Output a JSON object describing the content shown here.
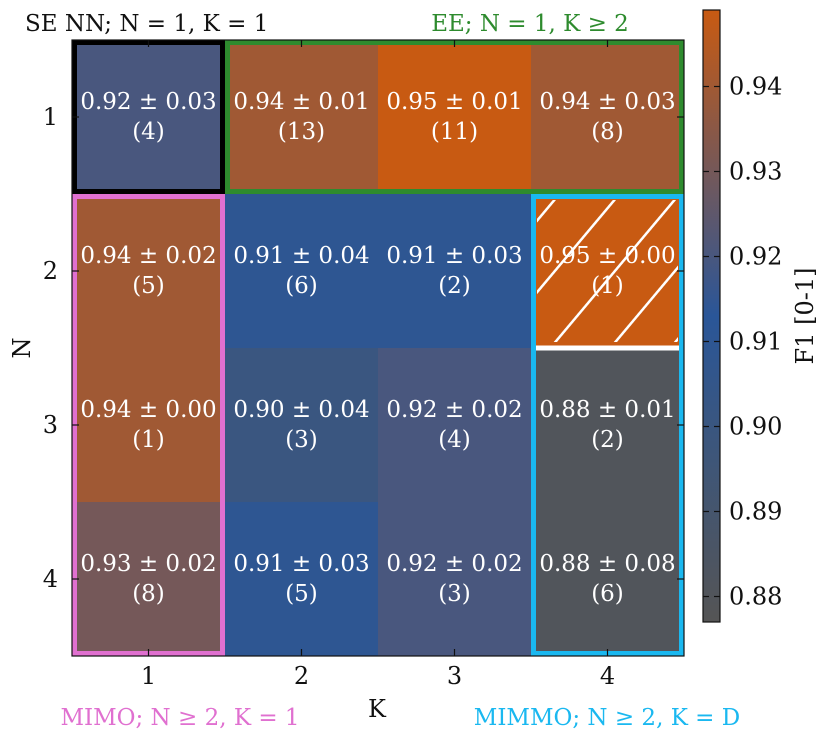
{
  "chart_data": {
    "type": "heatmap",
    "xlabel": "K",
    "ylabel": "N",
    "x_categories": [
      "1",
      "2",
      "3",
      "4"
    ],
    "y_categories": [
      "1",
      "2",
      "3",
      "4"
    ],
    "colorbar": {
      "label": "F1 [0-1]",
      "ticks": [
        "0.94",
        "0.93",
        "0.92",
        "0.91",
        "0.90",
        "0.89",
        "0.88"
      ],
      "tick_values": [
        0.94,
        0.93,
        0.92,
        0.91,
        0.9,
        0.89,
        0.88
      ],
      "range": [
        0.877,
        0.949
      ],
      "colors": [
        "#555555",
        "#2a5698",
        "#c85a12"
      ]
    },
    "cells": [
      {
        "N": 1,
        "K": 1,
        "value": 0.92,
        "text": "0.92 ± 0.03",
        "count": "(4)"
      },
      {
        "N": 1,
        "K": 2,
        "value": 0.94,
        "text": "0.94 ± 0.01",
        "count": "(13)"
      },
      {
        "N": 1,
        "K": 3,
        "value": 0.95,
        "text": "0.95 ± 0.01",
        "count": "(11)"
      },
      {
        "N": 1,
        "K": 4,
        "value": 0.94,
        "text": "0.94 ± 0.03",
        "count": "(8)"
      },
      {
        "N": 2,
        "K": 1,
        "value": 0.94,
        "text": "0.94 ± 0.02",
        "count": "(5)"
      },
      {
        "N": 2,
        "K": 2,
        "value": 0.91,
        "text": "0.91 ± 0.04",
        "count": "(6)"
      },
      {
        "N": 2,
        "K": 3,
        "value": 0.91,
        "text": "0.91 ± 0.03",
        "count": "(2)"
      },
      {
        "N": 2,
        "K": 4,
        "value": 0.95,
        "text": "0.95 ± 0.00",
        "count": "(1)",
        "hatched": true
      },
      {
        "N": 3,
        "K": 1,
        "value": 0.94,
        "text": "0.94 ± 0.00",
        "count": "(1)"
      },
      {
        "N": 3,
        "K": 2,
        "value": 0.9,
        "text": "0.90 ± 0.04",
        "count": "(3)"
      },
      {
        "N": 3,
        "K": 3,
        "value": 0.92,
        "text": "0.92 ± 0.02",
        "count": "(4)"
      },
      {
        "N": 3,
        "K": 4,
        "value": 0.88,
        "text": "0.88 ± 0.01",
        "count": "(2)"
      },
      {
        "N": 4,
        "K": 1,
        "value": 0.93,
        "text": "0.93 ± 0.02",
        "count": "(8)"
      },
      {
        "N": 4,
        "K": 2,
        "value": 0.91,
        "text": "0.91 ± 0.03",
        "count": "(5)"
      },
      {
        "N": 4,
        "K": 3,
        "value": 0.92,
        "text": "0.92 ± 0.02",
        "count": "(3)"
      },
      {
        "N": 4,
        "K": 4,
        "value": 0.88,
        "text": "0.88 ± 0.08",
        "count": "(6)"
      }
    ],
    "regions": [
      {
        "id": "se-nn",
        "label": "SE NN; N = 1, K = 1",
        "color": "#000000",
        "N": [
          1,
          1
        ],
        "K": [
          1,
          1
        ]
      },
      {
        "id": "ee",
        "label": "EE; N = 1, K ≥ 2",
        "color": "#2e8b2e",
        "N": [
          1,
          1
        ],
        "K": [
          2,
          4
        ]
      },
      {
        "id": "mimo",
        "label": "MIMO; N ≥ 2, K = 1",
        "color": "#e070d0",
        "N": [
          2,
          4
        ],
        "K": [
          1,
          1
        ]
      },
      {
        "id": "mimmo",
        "label": "MIMMO; N ≥ 2, K = D",
        "color": "#1ab8f0",
        "N": [
          2,
          4
        ],
        "K": [
          4,
          4
        ]
      }
    ]
  }
}
